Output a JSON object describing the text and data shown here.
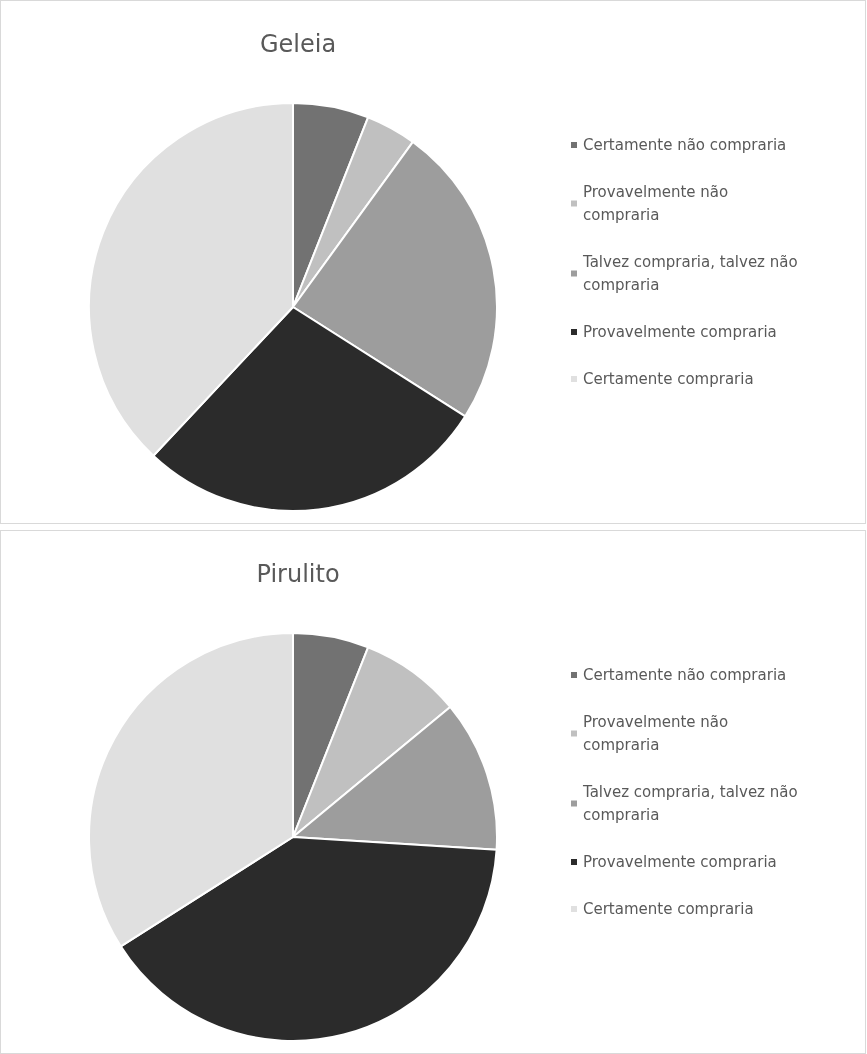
{
  "chart_data": [
    {
      "type": "pie",
      "title": "Geleia",
      "categories": [
        "Certamente não compraria",
        "Provavelmente não compraria",
        "Talvez compraria, talvez não compraria",
        "Provavelmente compraria",
        "Certamente compraria"
      ],
      "values": [
        6,
        4,
        24,
        28,
        38
      ],
      "colors": [
        "#727272",
        "#c0c0c0",
        "#9d9d9d",
        "#2b2b2b",
        "#e0e0e0"
      ],
      "legend": "right"
    },
    {
      "type": "pie",
      "title": "Pirulito",
      "categories": [
        "Certamente não compraria",
        "Provavelmente não compraria",
        "Talvez compraria, talvez não compraria",
        "Provavelmente compraria",
        "Certamente compraria"
      ],
      "values": [
        6,
        8,
        12,
        40,
        34
      ],
      "colors": [
        "#727272",
        "#c0c0c0",
        "#9d9d9d",
        "#2b2b2b",
        "#e0e0e0"
      ],
      "legend": "right"
    }
  ]
}
